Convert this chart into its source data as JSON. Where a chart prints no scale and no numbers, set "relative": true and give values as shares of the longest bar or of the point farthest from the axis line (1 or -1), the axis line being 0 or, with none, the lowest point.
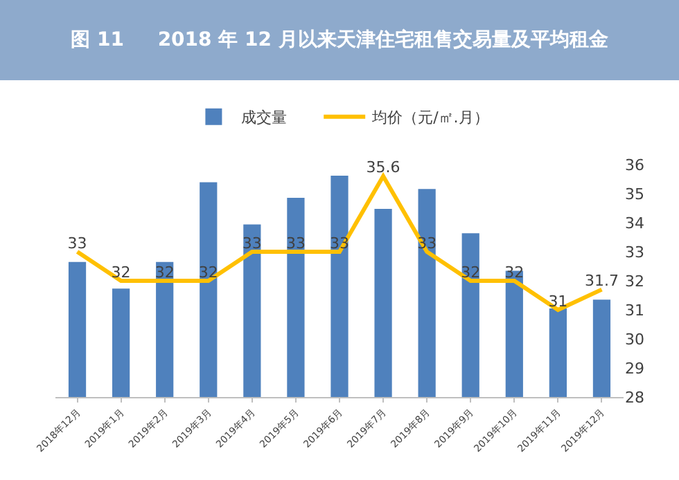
{
  "chart_data": [
    {
      "type": "bar",
      "title": "图 11     2018 年 12 月以来天津住宅租售交易量及平均租金",
      "categories": [
        "2018年12月",
        "2019年1月",
        "2019年2月",
        "2019年3月",
        "2019年4月",
        "2019年5月",
        "2019年6月",
        "2019年7月",
        "2019年8月",
        "2019年9月",
        "2019年10月",
        "2019年11月",
        "2019年12月"
      ],
      "relative": true,
      "series": [
        {
          "name": "成交量",
          "color": "#4f81bd",
          "values": [
            0.61,
            0.49,
            0.61,
            0.97,
            0.78,
            0.9,
            1,
            0.85,
            0.94,
            0.74,
            0.57,
            0.4,
            0.44
          ]
        }
      ],
      "tick_labels": "x",
      "legend": "top"
    },
    {
      "type": "line",
      "categories": [
        null,
        null,
        null,
        null,
        null,
        null,
        null,
        null,
        null,
        null,
        null,
        null,
        null
      ],
      "series": [
        {
          "name": "均价（元/㎡.月）",
          "color": "#ffc000",
          "values": [
            33,
            32,
            32,
            32,
            33,
            33,
            33,
            35.6,
            33,
            32,
            32,
            31,
            31.7
          ],
          "value_labels": [
            "33",
            "32",
            "32",
            "32",
            "33",
            "33",
            "33",
            "35.6",
            "33",
            "32",
            "32",
            "31",
            "31.7"
          ]
        }
      ],
      "ylim": [
        28,
        36
      ],
      "yticks": [
        28,
        29,
        30,
        31,
        32,
        33,
        34,
        35,
        36
      ],
      "tick_labels": "y",
      "legend": "top",
      "marker": "none"
    }
  ]
}
